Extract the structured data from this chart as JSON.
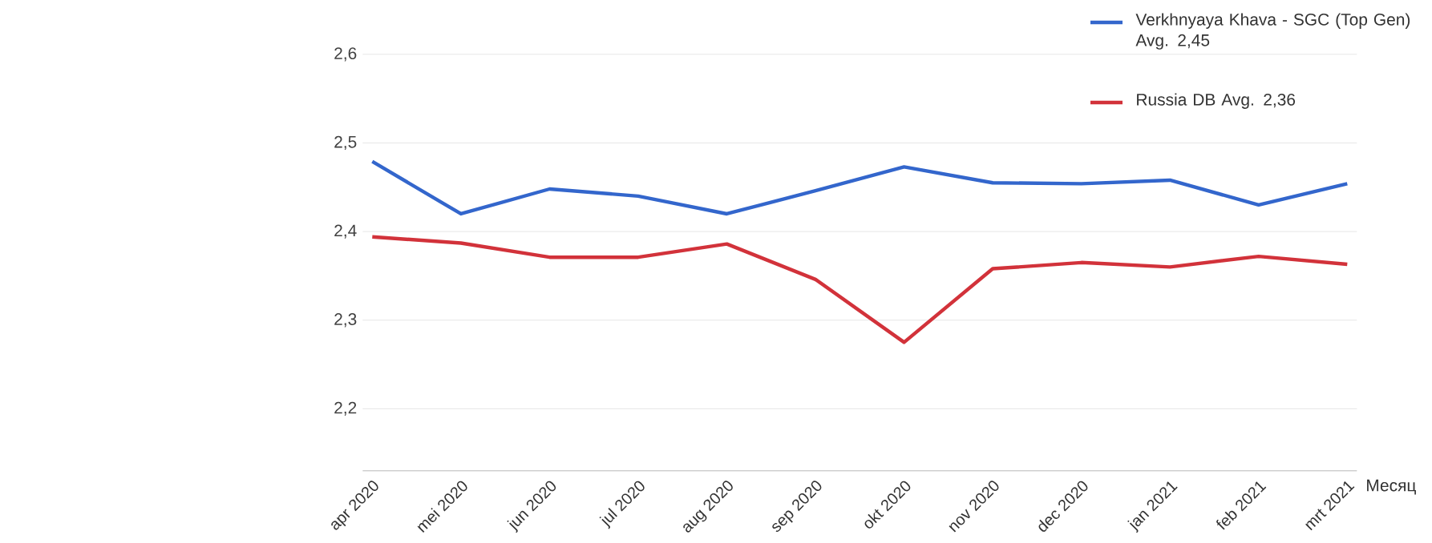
{
  "chart_data": {
    "type": "line",
    "xlabel": "Месяц",
    "categories": [
      "apr 2020",
      "mei 2020",
      "jun 2020",
      "jul 2020",
      "aug 2020",
      "sep 2020",
      "okt 2020",
      "nov 2020",
      "dec 2020",
      "jan 2021",
      "feb 2021",
      "mrt 2021"
    ],
    "series": [
      {
        "name": "Verkhnyaya Khava - SGC (Top Gen)   Avg. 2,45",
        "color": "#3366cc",
        "values": [
          2.479,
          2.42,
          2.448,
          2.44,
          2.42,
          2.446,
          2.473,
          2.455,
          2.454,
          2.458,
          2.43,
          2.454
        ]
      },
      {
        "name": "Russia DB Avg. 2,36",
        "color": "#d2323a",
        "values": [
          2.394,
          2.387,
          2.371,
          2.371,
          2.386,
          2.346,
          2.275,
          2.358,
          2.365,
          2.36,
          2.372,
          2.363
        ]
      }
    ],
    "ylim": [
      2.13,
      2.6
    ],
    "yticks": [
      {
        "value": 2.2,
        "label": "2,2"
      },
      {
        "value": 2.3,
        "label": "2,3"
      },
      {
        "value": 2.4,
        "label": "2,4"
      },
      {
        "value": 2.5,
        "label": "2,5"
      },
      {
        "value": 2.6,
        "label": "2,6"
      }
    ],
    "grid": "y",
    "legend": "right",
    "marker": "none",
    "line_style": "solid"
  }
}
